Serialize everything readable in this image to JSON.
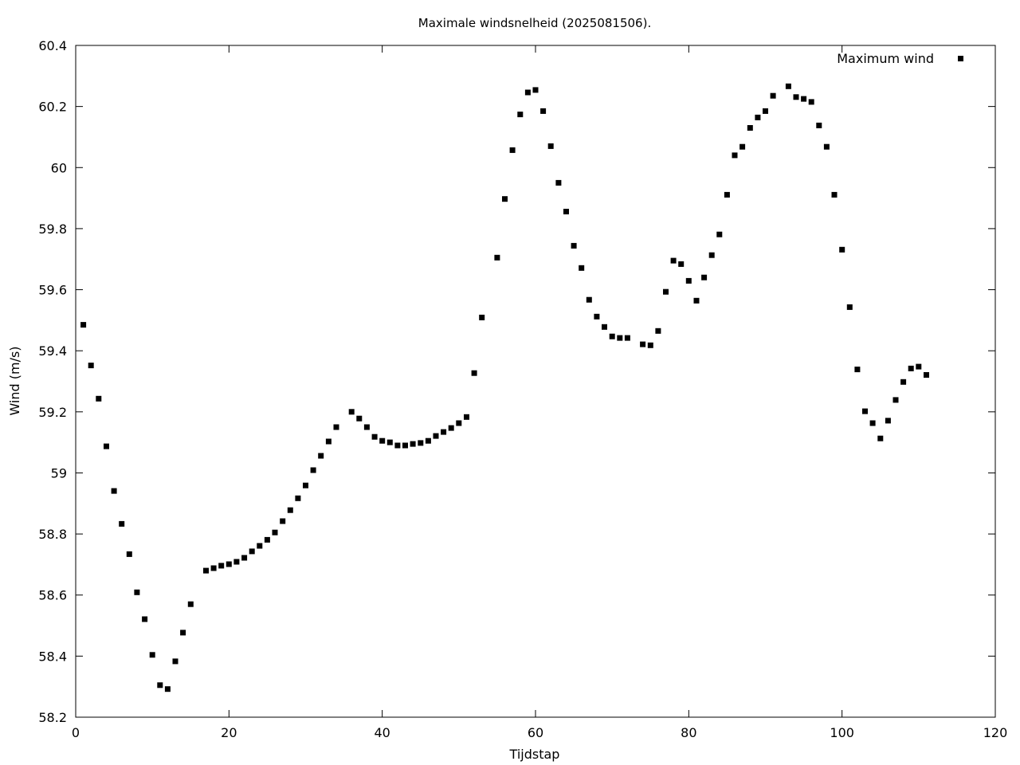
{
  "chart_data": {
    "type": "scatter",
    "title": "Maximale windsnelheid (2025081506).",
    "xlabel": "Tijdstap",
    "ylabel": "Wind (m/s)",
    "xlim": [
      0,
      120
    ],
    "ylim": [
      58.2,
      60.4
    ],
    "x_ticks": [
      0,
      20,
      40,
      60,
      80,
      100,
      120
    ],
    "x_tick_labels": [
      "0",
      "20",
      "40",
      "60",
      "80",
      "100",
      "120"
    ],
    "y_ticks": [
      58.2,
      58.4,
      58.6,
      58.8,
      59.0,
      59.2,
      59.4,
      59.6,
      59.8,
      60.0,
      60.2,
      60.4
    ],
    "y_tick_labels": [
      "58.2",
      "58.4",
      "58.6",
      "58.8",
      "59",
      "59.2",
      "59.4",
      "59.6",
      "59.8",
      "60",
      "60.2",
      "60.4"
    ],
    "grid": false,
    "legend_position": "top-right",
    "marker": "square",
    "marker_color": "#000000",
    "series": [
      {
        "name": "Maximum wind",
        "points": [
          [
            1,
            59.485
          ],
          [
            2,
            59.352
          ],
          [
            3,
            59.243
          ],
          [
            4,
            59.087
          ],
          [
            5,
            58.941
          ],
          [
            6,
            58.833
          ],
          [
            7,
            58.734
          ],
          [
            8,
            58.609
          ],
          [
            9,
            58.521
          ],
          [
            10,
            58.404
          ],
          [
            11,
            58.305
          ],
          [
            12,
            58.292
          ],
          [
            13,
            58.383
          ],
          [
            14,
            58.477
          ],
          [
            15,
            58.57
          ],
          [
            17,
            58.68
          ],
          [
            18,
            58.688
          ],
          [
            19,
            58.696
          ],
          [
            20,
            58.701
          ],
          [
            21,
            58.709
          ],
          [
            22,
            58.722
          ],
          [
            23,
            58.743
          ],
          [
            24,
            58.761
          ],
          [
            25,
            58.781
          ],
          [
            26,
            58.805
          ],
          [
            27,
            58.842
          ],
          [
            28,
            58.878
          ],
          [
            29,
            58.917
          ],
          [
            30,
            58.959
          ],
          [
            31,
            59.009
          ],
          [
            32,
            59.056
          ],
          [
            33,
            59.103
          ],
          [
            34,
            59.15
          ],
          [
            36,
            59.2
          ],
          [
            37,
            59.178
          ],
          [
            38,
            59.15
          ],
          [
            39,
            59.118
          ],
          [
            40,
            59.105
          ],
          [
            41,
            59.1
          ],
          [
            42,
            59.09
          ],
          [
            43,
            59.09
          ],
          [
            44,
            59.095
          ],
          [
            45,
            59.098
          ],
          [
            46,
            59.105
          ],
          [
            47,
            59.121
          ],
          [
            48,
            59.134
          ],
          [
            49,
            59.147
          ],
          [
            50,
            59.163
          ],
          [
            51,
            59.183
          ],
          [
            52,
            59.327
          ],
          [
            53,
            59.509
          ],
          [
            55,
            59.705
          ],
          [
            56,
            59.897
          ],
          [
            57,
            60.057
          ],
          [
            58,
            60.174
          ],
          [
            59,
            60.246
          ],
          [
            60,
            60.254
          ],
          [
            61,
            60.185
          ],
          [
            62,
            60.07
          ],
          [
            63,
            59.95
          ],
          [
            64,
            59.856
          ],
          [
            65,
            59.744
          ],
          [
            66,
            59.671
          ],
          [
            67,
            59.567
          ],
          [
            68,
            59.512
          ],
          [
            69,
            59.478
          ],
          [
            70,
            59.447
          ],
          [
            71,
            59.442
          ],
          [
            72,
            59.442
          ],
          [
            74,
            59.421
          ],
          [
            75,
            59.418
          ],
          [
            76,
            59.465
          ],
          [
            77,
            59.593
          ],
          [
            78,
            59.695
          ],
          [
            79,
            59.684
          ],
          [
            80,
            59.629
          ],
          [
            81,
            59.564
          ],
          [
            82,
            59.64
          ],
          [
            83,
            59.713
          ],
          [
            84,
            59.781
          ],
          [
            85,
            59.911
          ],
          [
            86,
            60.04
          ],
          [
            87,
            60.068
          ],
          [
            88,
            60.13
          ],
          [
            89,
            60.164
          ],
          [
            90,
            60.185
          ],
          [
            91,
            60.235
          ],
          [
            93,
            60.266
          ],
          [
            94,
            60.231
          ],
          [
            95,
            60.225
          ],
          [
            96,
            60.215
          ],
          [
            97,
            60.138
          ],
          [
            98,
            60.068
          ],
          [
            99,
            59.911
          ],
          [
            100,
            59.731
          ],
          [
            101,
            59.543
          ],
          [
            102,
            59.339
          ],
          [
            103,
            59.202
          ],
          [
            104,
            59.163
          ],
          [
            105,
            59.113
          ],
          [
            106,
            59.171
          ],
          [
            107,
            59.239
          ],
          [
            108,
            59.298
          ],
          [
            109,
            59.342
          ],
          [
            110,
            59.348
          ],
          [
            111,
            59.321
          ]
        ]
      }
    ]
  }
}
